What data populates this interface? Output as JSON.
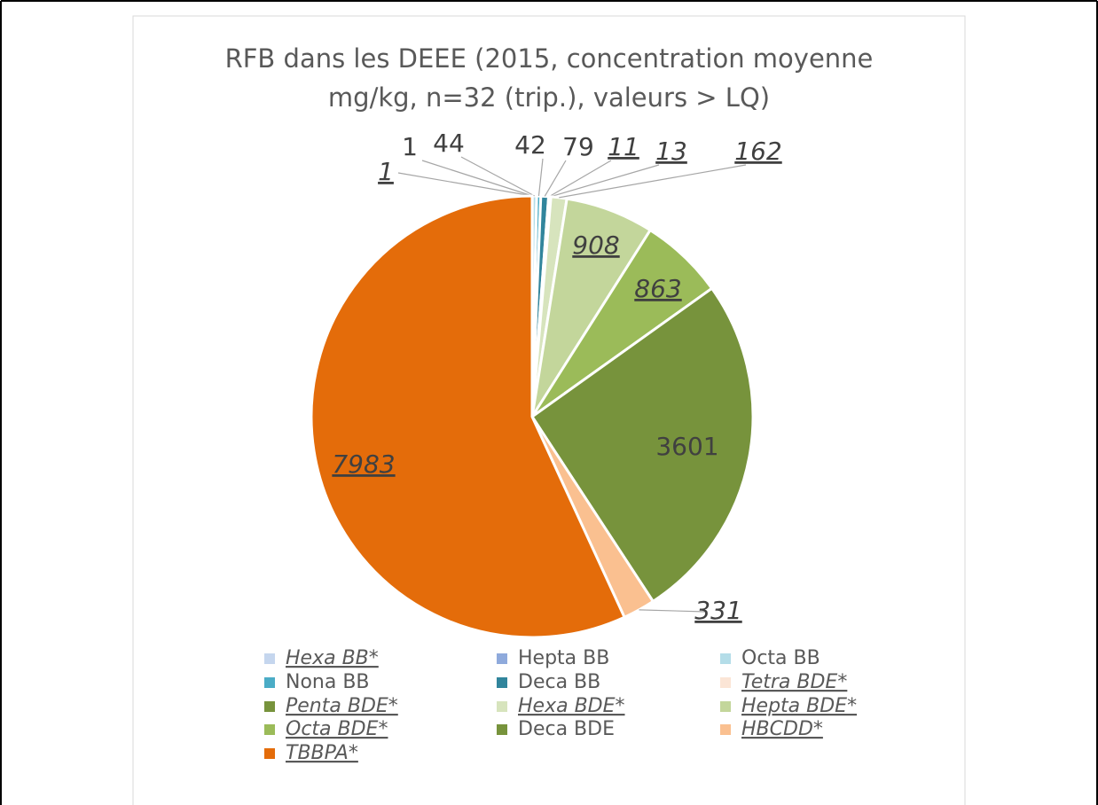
{
  "chart_data": {
    "type": "pie",
    "title": [
      "RFB dans les DEEE (2015, concentration moyenne",
      "mg/kg, n=32 (trip.), valeurs > LQ)"
    ],
    "categories": [
      "Hexa BB*",
      "Hepta BB",
      "Octa BB",
      "Nona BB",
      "Deca BB",
      "Tetra BDE*",
      "Penta BDE*",
      "Hexa BDE*",
      "Hepta BDE*",
      "Octa  BDE*",
      "Deca BDE",
      "HBCDD*",
      "TBBPA*"
    ],
    "values": [
      1,
      1,
      44,
      42,
      79,
      11,
      13,
      162,
      908,
      863,
      3601,
      331,
      7983
    ],
    "colors": [
      "#c5d6ee",
      "#8faadc",
      "#b4dde8",
      "#4bacc6",
      "#31859c",
      "#fbe5d6",
      "#77933c",
      "#d7e4bd",
      "#c3d69b",
      "#9bbb59",
      "#77933c",
      "#fac090",
      "#e46c0a"
    ],
    "legend": "bottom"
  }
}
